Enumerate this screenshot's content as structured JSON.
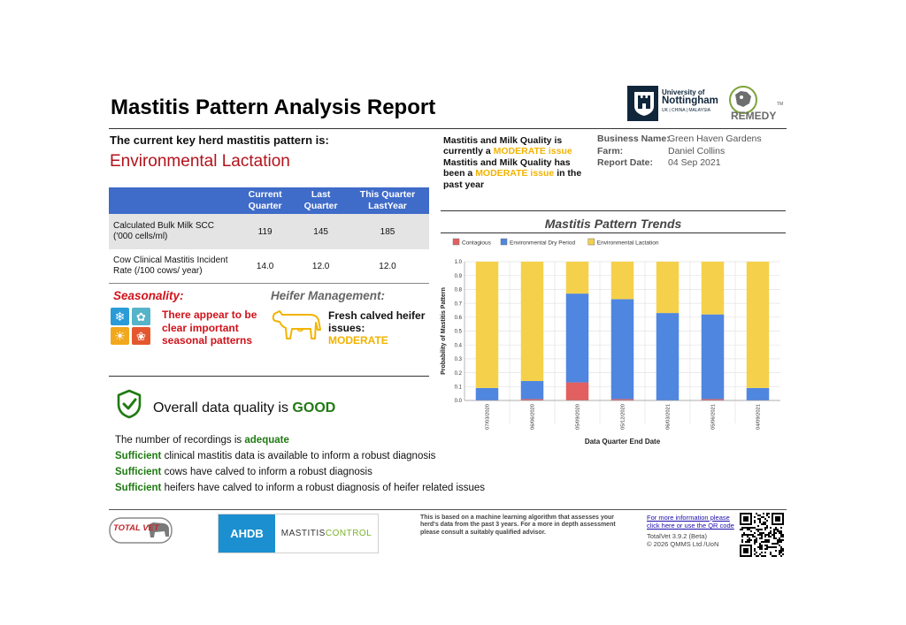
{
  "report": {
    "title": "Mastitis Pattern Analysis Report"
  },
  "logos": {
    "uon_line1": "University of",
    "uon_line2": "Nottingham",
    "uon_line3": "UK | CHINA | MALAYSIA",
    "remedy": "REMEDY",
    "remedy_tm": "TM",
    "totalvet": "TOTAL VET",
    "ahdb_left": "AHDB",
    "ahdb_right_a": "MASTITIS",
    "ahdb_right_b": "CONTROL"
  },
  "key": {
    "label": "The current key herd mastitis pattern is:",
    "pattern": "Environmental Lactation"
  },
  "status": {
    "l1a": "Mastitis and Milk Quality is",
    "l1b": "currently a",
    "l1mod": "MODERATE issue",
    "l2a": "Mastitis and Milk Quality has",
    "l2b": "been a",
    "l2mod": "MODERATE issue",
    "l2c": "in the past year"
  },
  "business": {
    "name_label": "Business Name:",
    "name_value": "Green Haven Gardens",
    "farm_label": "Farm:",
    "farm_value": "Daniel Collins",
    "date_label": "Report Date:",
    "date_value": "04 Sep 2021"
  },
  "table": {
    "headers": [
      "",
      "Current Quarter",
      "Last Quarter",
      "This Quarter LastYear"
    ],
    "rows": [
      {
        "label": "Calculated Bulk Milk SCC ('000 cells/ml)",
        "current": "119",
        "last": "145",
        "last_year": "185"
      },
      {
        "label": "Cow Clinical Mastitis Incident Rate (/100 cows/ year)",
        "current": "14.0",
        "last": "12.0",
        "last_year": "12.0"
      }
    ]
  },
  "seasonality": {
    "heading": "Seasonality:",
    "text": "There appear to be clear important seasonal patterns"
  },
  "heifer": {
    "heading": "Heifer Management:",
    "text": "Fresh calved heifer issues:",
    "status": "MODERATE"
  },
  "data_quality": {
    "lead": "Overall data quality is",
    "value": "GOOD",
    "recordings_a": "The number of recordings is",
    "recordings_b": "adequate",
    "lines": [
      {
        "strong": "Sufficient",
        "rest": "clinical mastitis data is available to inform a robust diagnosis"
      },
      {
        "strong": "Sufficient",
        "rest": "cows have calved to inform a robust diagnosis"
      },
      {
        "strong": "Sufficient",
        "rest": "heifers have calved to inform a robust diagnosis of heifer related issues"
      }
    ]
  },
  "chart_data": {
    "type": "bar",
    "stacked": true,
    "title": "Mastitis Pattern Trends",
    "xlabel": "Data Quarter End Date",
    "ylabel": "Probability of Mastitis Pattern",
    "ylim": [
      0,
      1
    ],
    "yticks": [
      "0.0",
      "0.1",
      "0.2",
      "0.3",
      "0.4",
      "0.5",
      "0.6",
      "0.7",
      "0.8",
      "0.9",
      "1.0"
    ],
    "legend_position": "top",
    "categories": [
      "07/03/2020",
      "06/06/2020",
      "05/09/2020",
      "05/12/2020",
      "06/03/2021",
      "05/06/2021",
      "04/09/2021"
    ],
    "series": [
      {
        "name": "Contagious",
        "color": "#e2605f",
        "values": [
          0.0,
          0.01,
          0.13,
          0.01,
          0.0,
          0.01,
          0.0
        ]
      },
      {
        "name": "Environmental Dry Period",
        "color": "#4f86e0",
        "values": [
          0.09,
          0.13,
          0.64,
          0.72,
          0.63,
          0.61,
          0.09
        ]
      },
      {
        "name": "Environmental Lactation",
        "color": "#f5d14b",
        "values": [
          0.91,
          0.86,
          0.23,
          0.27,
          0.37,
          0.38,
          0.91
        ]
      }
    ]
  },
  "footer": {
    "disclaimer": "This is based on a machine learning algorithm that assesses your herd's data from the past 3 years. For a more in depth assessment please consult a suitably qualified advisor.",
    "more_info": "For more information please click here or use the QR code",
    "version": "TotalVet 3.9.2 (Beta)",
    "copyright": "© 2026 QMMS Ltd /UoN"
  }
}
